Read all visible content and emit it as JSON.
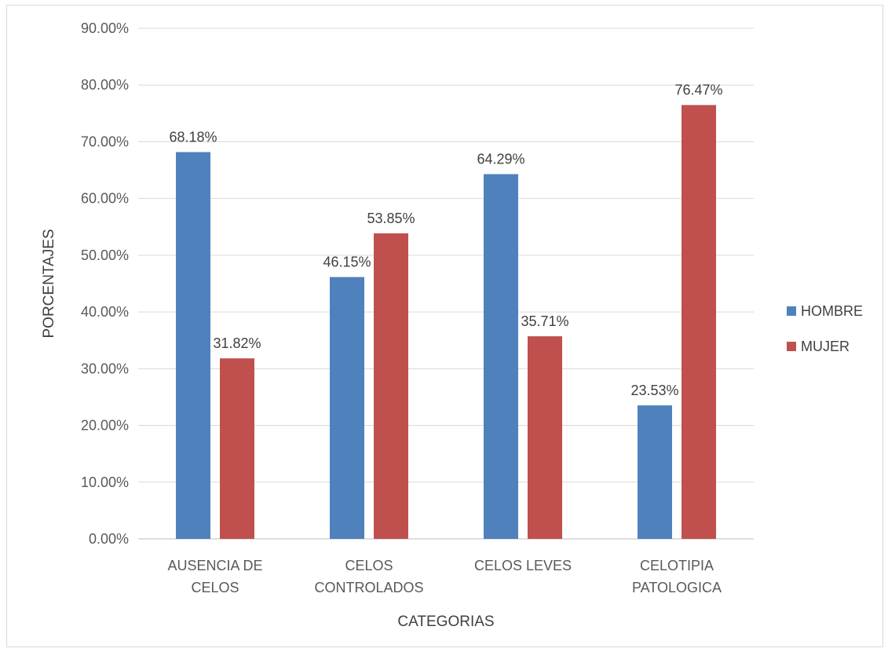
{
  "chart_data": {
    "type": "bar",
    "title": "",
    "xlabel": "CATEGORIAS",
    "ylabel": "PORCENTAJES",
    "ylim": [
      0,
      90
    ],
    "yticks": [
      "0.00%",
      "10.00%",
      "20.00%",
      "30.00%",
      "40.00%",
      "50.00%",
      "60.00%",
      "70.00%",
      "80.00%",
      "90.00%"
    ],
    "categories": [
      [
        "AUSENCIA DE",
        "CELOS"
      ],
      [
        "CELOS",
        "CONTROLADOS"
      ],
      [
        "CELOS LEVES"
      ],
      [
        "CELOTIPIA",
        "PATOLOGICA"
      ]
    ],
    "series": [
      {
        "name": "HOMBRE",
        "color": "#4f81bd",
        "values": [
          68.18,
          46.15,
          64.29,
          23.53
        ],
        "labels": [
          "68.18%",
          "46.15%",
          "64.29%",
          "23.53%"
        ]
      },
      {
        "name": "MUJER",
        "color": "#c0504d",
        "values": [
          31.82,
          53.85,
          35.71,
          76.47
        ],
        "labels": [
          "31.82%",
          "53.85%",
          "35.71%",
          "76.47%"
        ]
      }
    ],
    "grid": true,
    "legend_position": "right"
  }
}
